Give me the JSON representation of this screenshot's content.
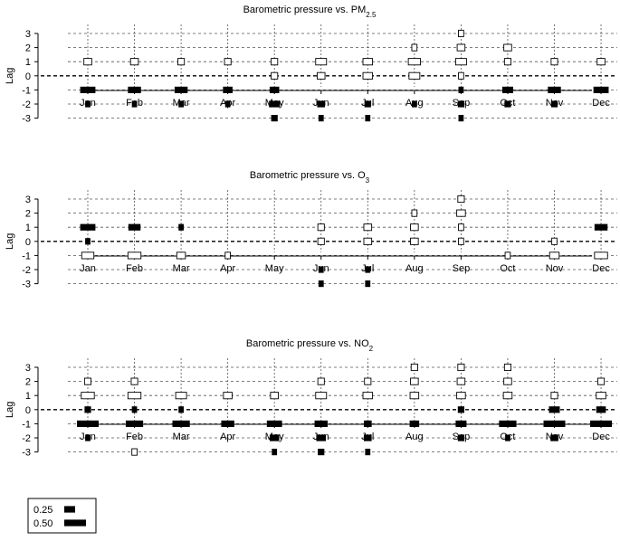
{
  "chart_data": [
    {
      "type": "scatter",
      "title": "Barometric pressure vs. PM",
      "title_sub": "2.5",
      "ylabel": "Lag",
      "ylim": [
        -3,
        3
      ],
      "yticks": [
        "3",
        "2",
        "1",
        "0",
        "-1",
        "-2",
        "-3"
      ],
      "categories": [
        "Jan",
        "Feb",
        "Mar",
        "Apr",
        "May",
        "Jun",
        "Jul",
        "Aug",
        "Sep",
        "Oct",
        "Nov",
        "Dec"
      ],
      "points": [
        {
          "month": 0,
          "lag": 1,
          "value": 0.18,
          "sign": "positive"
        },
        {
          "month": 0,
          "lag": -1,
          "value": 0.35,
          "sign": "negative"
        },
        {
          "month": 0,
          "lag": -2,
          "value": 0.12,
          "sign": "negative"
        },
        {
          "month": 1,
          "lag": 1,
          "value": 0.18,
          "sign": "positive"
        },
        {
          "month": 1,
          "lag": -1,
          "value": 0.3,
          "sign": "negative"
        },
        {
          "month": 1,
          "lag": -2,
          "value": 0.12,
          "sign": "negative"
        },
        {
          "month": 2,
          "lag": 1,
          "value": 0.15,
          "sign": "positive"
        },
        {
          "month": 2,
          "lag": -1,
          "value": 0.3,
          "sign": "negative"
        },
        {
          "month": 2,
          "lag": -2,
          "value": 0.12,
          "sign": "negative"
        },
        {
          "month": 3,
          "lag": 1,
          "value": 0.15,
          "sign": "positive"
        },
        {
          "month": 3,
          "lag": -1,
          "value": 0.22,
          "sign": "negative"
        },
        {
          "month": 3,
          "lag": -2,
          "value": 0.12,
          "sign": "negative"
        },
        {
          "month": 4,
          "lag": 1,
          "value": 0.15,
          "sign": "positive"
        },
        {
          "month": 4,
          "lag": 0,
          "value": 0.15,
          "sign": "positive"
        },
        {
          "month": 4,
          "lag": -1,
          "value": 0.22,
          "sign": "negative"
        },
        {
          "month": 4,
          "lag": -2,
          "value": 0.25,
          "sign": "negative"
        },
        {
          "month": 4,
          "lag": -3,
          "value": 0.15,
          "sign": "negative"
        },
        {
          "month": 5,
          "lag": 1,
          "value": 0.25,
          "sign": "positive"
        },
        {
          "month": 5,
          "lag": 0,
          "value": 0.18,
          "sign": "positive"
        },
        {
          "month": 5,
          "lag": -2,
          "value": 0.18,
          "sign": "negative"
        },
        {
          "month": 5,
          "lag": -3,
          "value": 0.12,
          "sign": "negative"
        },
        {
          "month": 6,
          "lag": 1,
          "value": 0.22,
          "sign": "positive"
        },
        {
          "month": 6,
          "lag": 0,
          "value": 0.22,
          "sign": "positive"
        },
        {
          "month": 6,
          "lag": -2,
          "value": 0.15,
          "sign": "negative"
        },
        {
          "month": 6,
          "lag": -3,
          "value": 0.12,
          "sign": "negative"
        },
        {
          "month": 7,
          "lag": 2,
          "value": 0.12,
          "sign": "positive"
        },
        {
          "month": 7,
          "lag": 1,
          "value": 0.28,
          "sign": "positive"
        },
        {
          "month": 7,
          "lag": 0,
          "value": 0.25,
          "sign": "positive"
        },
        {
          "month": 7,
          "lag": -2,
          "value": 0.12,
          "sign": "negative"
        },
        {
          "month": 8,
          "lag": 3,
          "value": 0.12,
          "sign": "positive"
        },
        {
          "month": 8,
          "lag": 2,
          "value": 0.18,
          "sign": "positive"
        },
        {
          "month": 8,
          "lag": 1,
          "value": 0.25,
          "sign": "positive"
        },
        {
          "month": 8,
          "lag": 0,
          "value": 0.12,
          "sign": "positive"
        },
        {
          "month": 8,
          "lag": -1,
          "value": 0.12,
          "sign": "negative"
        },
        {
          "month": 8,
          "lag": -2,
          "value": 0.15,
          "sign": "negative"
        },
        {
          "month": 8,
          "lag": -3,
          "value": 0.12,
          "sign": "negative"
        },
        {
          "month": 9,
          "lag": 2,
          "value": 0.18,
          "sign": "positive"
        },
        {
          "month": 9,
          "lag": 1,
          "value": 0.15,
          "sign": "positive"
        },
        {
          "month": 9,
          "lag": -1,
          "value": 0.25,
          "sign": "negative"
        },
        {
          "month": 9,
          "lag": -2,
          "value": 0.15,
          "sign": "negative"
        },
        {
          "month": 10,
          "lag": 1,
          "value": 0.15,
          "sign": "positive"
        },
        {
          "month": 10,
          "lag": -1,
          "value": 0.3,
          "sign": "negative"
        },
        {
          "month": 10,
          "lag": -2,
          "value": 0.15,
          "sign": "negative"
        },
        {
          "month": 11,
          "lag": 1,
          "value": 0.18,
          "sign": "positive"
        },
        {
          "month": 11,
          "lag": -1,
          "value": 0.35,
          "sign": "negative"
        }
      ]
    },
    {
      "type": "scatter",
      "title": "Barometric pressure vs. O",
      "title_sub": "3",
      "ylabel": "Lag",
      "ylim": [
        -3,
        3
      ],
      "yticks": [
        "3",
        "2",
        "1",
        "0",
        "-1",
        "-2",
        "-3"
      ],
      "categories": [
        "Jan",
        "Feb",
        "Mar",
        "Apr",
        "May",
        "Jun",
        "Jul",
        "Aug",
        "Sep",
        "Oct",
        "Nov",
        "Dec"
      ],
      "points": [
        {
          "month": 0,
          "lag": 1,
          "value": 0.35,
          "sign": "negative"
        },
        {
          "month": 0,
          "lag": 0,
          "value": 0.12,
          "sign": "negative"
        },
        {
          "month": 0,
          "lag": -1,
          "value": 0.28,
          "sign": "positive"
        },
        {
          "month": 1,
          "lag": 1,
          "value": 0.28,
          "sign": "negative"
        },
        {
          "month": 1,
          "lag": -1,
          "value": 0.3,
          "sign": "positive"
        },
        {
          "month": 2,
          "lag": 1,
          "value": 0.12,
          "sign": "negative"
        },
        {
          "month": 2,
          "lag": -1,
          "value": 0.2,
          "sign": "positive"
        },
        {
          "month": 3,
          "lag": -1,
          "value": 0.12,
          "sign": "positive"
        },
        {
          "month": 5,
          "lag": 1,
          "value": 0.15,
          "sign": "positive"
        },
        {
          "month": 5,
          "lag": 0,
          "value": 0.15,
          "sign": "positive"
        },
        {
          "month": 5,
          "lag": -2,
          "value": 0.12,
          "sign": "negative"
        },
        {
          "month": 5,
          "lag": -3,
          "value": 0.12,
          "sign": "negative"
        },
        {
          "month": 6,
          "lag": 1,
          "value": 0.18,
          "sign": "positive"
        },
        {
          "month": 6,
          "lag": 0,
          "value": 0.18,
          "sign": "positive"
        },
        {
          "month": 6,
          "lag": -2,
          "value": 0.12,
          "sign": "negative"
        },
        {
          "month": 6,
          "lag": -3,
          "value": 0.12,
          "sign": "negative"
        },
        {
          "month": 7,
          "lag": 2,
          "value": 0.12,
          "sign": "positive"
        },
        {
          "month": 7,
          "lag": 1,
          "value": 0.18,
          "sign": "positive"
        },
        {
          "month": 7,
          "lag": 0,
          "value": 0.18,
          "sign": "positive"
        },
        {
          "month": 8,
          "lag": 3,
          "value": 0.15,
          "sign": "positive"
        },
        {
          "month": 8,
          "lag": 2,
          "value": 0.2,
          "sign": "positive"
        },
        {
          "month": 8,
          "lag": 1,
          "value": 0.12,
          "sign": "positive"
        },
        {
          "month": 8,
          "lag": 0,
          "value": 0.12,
          "sign": "positive"
        },
        {
          "month": 9,
          "lag": -1,
          "value": 0.12,
          "sign": "positive"
        },
        {
          "month": 10,
          "lag": 0,
          "value": 0.12,
          "sign": "positive"
        },
        {
          "month": 10,
          "lag": -1,
          "value": 0.22,
          "sign": "positive"
        },
        {
          "month": 11,
          "lag": 1,
          "value": 0.3,
          "sign": "negative"
        },
        {
          "month": 11,
          "lag": -1,
          "value": 0.3,
          "sign": "positive"
        }
      ]
    },
    {
      "type": "scatter",
      "title": "Barometric pressure vs. NO",
      "title_sub": "2",
      "ylabel": "Lag",
      "ylim": [
        -3,
        3
      ],
      "yticks": [
        "3",
        "2",
        "1",
        "0",
        "-1",
        "-2",
        "-3"
      ],
      "categories": [
        "Jan",
        "Feb",
        "Mar",
        "Apr",
        "May",
        "Jun",
        "Jul",
        "Aug",
        "Sep",
        "Oct",
        "Nov",
        "Dec"
      ],
      "points": [
        {
          "month": 0,
          "lag": 2,
          "value": 0.15,
          "sign": "positive"
        },
        {
          "month": 0,
          "lag": 1,
          "value": 0.3,
          "sign": "positive"
        },
        {
          "month": 0,
          "lag": 0,
          "value": 0.15,
          "sign": "negative"
        },
        {
          "month": 0,
          "lag": -1,
          "value": 0.5,
          "sign": "negative"
        },
        {
          "month": 0,
          "lag": -2,
          "value": 0.12,
          "sign": "negative"
        },
        {
          "month": 1,
          "lag": 2,
          "value": 0.15,
          "sign": "positive"
        },
        {
          "month": 1,
          "lag": 1,
          "value": 0.3,
          "sign": "positive"
        },
        {
          "month": 1,
          "lag": 0,
          "value": 0.12,
          "sign": "negative"
        },
        {
          "month": 1,
          "lag": -1,
          "value": 0.4,
          "sign": "negative"
        },
        {
          "month": 1,
          "lag": -3,
          "value": 0.12,
          "sign": "positive"
        },
        {
          "month": 2,
          "lag": 1,
          "value": 0.25,
          "sign": "positive"
        },
        {
          "month": 2,
          "lag": 0,
          "value": 0.12,
          "sign": "negative"
        },
        {
          "month": 2,
          "lag": -1,
          "value": 0.4,
          "sign": "negative"
        },
        {
          "month": 3,
          "lag": 1,
          "value": 0.2,
          "sign": "positive"
        },
        {
          "month": 3,
          "lag": -1,
          "value": 0.3,
          "sign": "negative"
        },
        {
          "month": 4,
          "lag": 1,
          "value": 0.18,
          "sign": "positive"
        },
        {
          "month": 4,
          "lag": -1,
          "value": 0.35,
          "sign": "negative"
        },
        {
          "month": 4,
          "lag": -2,
          "value": 0.22,
          "sign": "negative"
        },
        {
          "month": 4,
          "lag": -3,
          "value": 0.12,
          "sign": "negative"
        },
        {
          "month": 5,
          "lag": 2,
          "value": 0.15,
          "sign": "positive"
        },
        {
          "month": 5,
          "lag": 1,
          "value": 0.25,
          "sign": "positive"
        },
        {
          "month": 5,
          "lag": -1,
          "value": 0.3,
          "sign": "negative"
        },
        {
          "month": 5,
          "lag": -2,
          "value": 0.22,
          "sign": "negative"
        },
        {
          "month": 5,
          "lag": -3,
          "value": 0.15,
          "sign": "negative"
        },
        {
          "month": 6,
          "lag": 2,
          "value": 0.15,
          "sign": "positive"
        },
        {
          "month": 6,
          "lag": 1,
          "value": 0.22,
          "sign": "positive"
        },
        {
          "month": 6,
          "lag": -1,
          "value": 0.18,
          "sign": "negative"
        },
        {
          "month": 6,
          "lag": -2,
          "value": 0.18,
          "sign": "negative"
        },
        {
          "month": 6,
          "lag": -3,
          "value": 0.12,
          "sign": "negative"
        },
        {
          "month": 7,
          "lag": 3,
          "value": 0.15,
          "sign": "positive"
        },
        {
          "month": 7,
          "lag": 2,
          "value": 0.18,
          "sign": "positive"
        },
        {
          "month": 7,
          "lag": 1,
          "value": 0.2,
          "sign": "positive"
        },
        {
          "month": 7,
          "lag": -1,
          "value": 0.22,
          "sign": "negative"
        },
        {
          "month": 8,
          "lag": 3,
          "value": 0.15,
          "sign": "positive"
        },
        {
          "month": 8,
          "lag": 2,
          "value": 0.18,
          "sign": "positive"
        },
        {
          "month": 8,
          "lag": 1,
          "value": 0.2,
          "sign": "positive"
        },
        {
          "month": 8,
          "lag": 0,
          "value": 0.15,
          "sign": "negative"
        },
        {
          "month": 8,
          "lag": -1,
          "value": 0.25,
          "sign": "negative"
        },
        {
          "month": 8,
          "lag": -2,
          "value": 0.15,
          "sign": "negative"
        },
        {
          "month": 9,
          "lag": 3,
          "value": 0.15,
          "sign": "positive"
        },
        {
          "month": 9,
          "lag": 2,
          "value": 0.18,
          "sign": "positive"
        },
        {
          "month": 9,
          "lag": 1,
          "value": 0.2,
          "sign": "positive"
        },
        {
          "month": 9,
          "lag": -1,
          "value": 0.4,
          "sign": "negative"
        },
        {
          "month": 9,
          "lag": -2,
          "value": 0.12,
          "sign": "negative"
        },
        {
          "month": 10,
          "lag": 1,
          "value": 0.15,
          "sign": "positive"
        },
        {
          "month": 10,
          "lag": 0,
          "value": 0.25,
          "sign": "negative"
        },
        {
          "month": 10,
          "lag": -1,
          "value": 0.5,
          "sign": "negative"
        },
        {
          "month": 10,
          "lag": -2,
          "value": 0.18,
          "sign": "negative"
        },
        {
          "month": 11,
          "lag": 2,
          "value": 0.15,
          "sign": "positive"
        },
        {
          "month": 11,
          "lag": 1,
          "value": 0.22,
          "sign": "positive"
        },
        {
          "month": 11,
          "lag": 0,
          "value": 0.22,
          "sign": "negative"
        },
        {
          "month": 11,
          "lag": -1,
          "value": 0.5,
          "sign": "negative"
        }
      ]
    }
  ],
  "legend": {
    "items": [
      {
        "label": "0.25",
        "value": 0.25
      },
      {
        "label": "0.50",
        "value": 0.5
      }
    ]
  },
  "colors": {
    "negative": "#000000",
    "positive": "#ffffff",
    "outline": "#000000",
    "grid": "#555555"
  }
}
